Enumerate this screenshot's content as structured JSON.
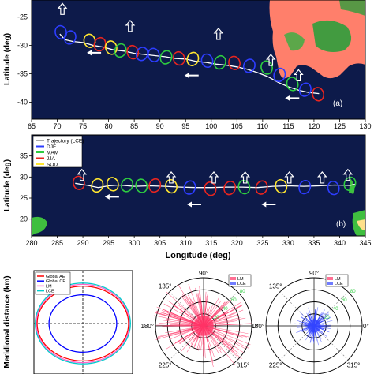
{
  "chart_data": [
    {
      "type": "line",
      "panel_label": "(a)",
      "xlabel": "",
      "ylabel": "Latitude (deg)",
      "xlim": [
        65,
        130
      ],
      "ylim": [
        -43,
        -22
      ],
      "xticks": [
        65,
        70,
        75,
        80,
        85,
        90,
        95,
        100,
        105,
        110,
        115,
        120,
        125,
        130
      ],
      "yticks": [
        -25,
        -30,
        -35,
        -40
      ],
      "xtick_labels": [
        "65",
        "70",
        "75",
        "80",
        "85",
        "90",
        "95",
        "100",
        "105",
        "110",
        "115",
        "120",
        "125",
        "130"
      ],
      "ytick_labels": [
        "-25",
        "-30",
        "-35",
        "-40"
      ],
      "background": "#0d1a4a",
      "land_color": "#ff7f6b",
      "trajectory_color": "#ffffff",
      "trajectory": {
        "x": [
          70.5,
          71.5,
          73,
          75,
          77,
          79,
          81,
          83,
          85,
          87,
          89,
          91,
          93,
          95,
          97,
          99,
          101,
          103,
          105,
          107,
          109,
          111,
          113,
          115,
          117,
          119,
          121
        ],
        "y": [
          -28,
          -29,
          -29.3,
          -29.5,
          -30,
          -30.3,
          -30.8,
          -31,
          -31.4,
          -31.6,
          -31.8,
          -32,
          -32.3,
          -32.4,
          -32.8,
          -33,
          -33.3,
          -33.5,
          -33.8,
          -34.2,
          -34.8,
          -35.5,
          -36.5,
          -37.3,
          -37.9,
          -38.3,
          -38.5
        ]
      },
      "ellipses": [
        {
          "x": 70.7,
          "y": -27.7,
          "season": "DJF"
        },
        {
          "x": 72.5,
          "y": -28.6,
          "season": "DJF"
        },
        {
          "x": 76.3,
          "y": -29.2,
          "season": "SOD"
        },
        {
          "x": 78.3,
          "y": -29.8,
          "season": "JJA"
        },
        {
          "x": 80.5,
          "y": -30.4,
          "season": "SOD"
        },
        {
          "x": 82.3,
          "y": -30.9,
          "season": "MAM"
        },
        {
          "x": 84.7,
          "y": -31.2,
          "season": "JJA"
        },
        {
          "x": 86.5,
          "y": -31.5,
          "season": "DJF"
        },
        {
          "x": 88.8,
          "y": -31.7,
          "season": "DJF"
        },
        {
          "x": 91.2,
          "y": -32.1,
          "season": "MAM"
        },
        {
          "x": 93.7,
          "y": -32.3,
          "season": "JJA"
        },
        {
          "x": 96.4,
          "y": -32.4,
          "season": "SOD"
        },
        {
          "x": 99.2,
          "y": -32.7,
          "season": "DJF"
        },
        {
          "x": 101.7,
          "y": -33.0,
          "season": "MAM"
        },
        {
          "x": 104.5,
          "y": -33.1,
          "season": "JJA"
        },
        {
          "x": 107.4,
          "y": -33.6,
          "season": "DJF"
        },
        {
          "x": 110.8,
          "y": -33.9,
          "season": "MAM"
        },
        {
          "x": 113.3,
          "y": -35.2,
          "season": "DJF"
        },
        {
          "x": 115.8,
          "y": -36.8,
          "season": "MAM"
        },
        {
          "x": 118.3,
          "y": -37.8,
          "season": "DJF"
        },
        {
          "x": 120.8,
          "y": -38.6,
          "season": "JJA"
        }
      ],
      "up_arrows": [
        {
          "x": 71,
          "y": -22.6
        },
        {
          "x": 84.2,
          "y": -25.6
        },
        {
          "x": 101.4,
          "y": -27.0
        },
        {
          "x": 111.6,
          "y": -31.6
        },
        {
          "x": 117.0,
          "y": -34.3
        }
      ],
      "left_arrows": [
        {
          "x": 77.0,
          "y": -31.3
        },
        {
          "x": 96.0,
          "y": -35.3
        },
        {
          "x": 115.6,
          "y": -39.3
        }
      ]
    },
    {
      "type": "line",
      "panel_label": "(b)",
      "xlabel": "Longitude (deg)",
      "ylabel": "Latitude (deg)",
      "xlim": [
        280,
        345
      ],
      "ylim": [
        16,
        40
      ],
      "xticks": [
        280,
        285,
        290,
        295,
        300,
        305,
        310,
        315,
        320,
        325,
        330,
        335,
        340,
        345
      ],
      "yticks": [
        20,
        25,
        30,
        35
      ],
      "xtick_labels": [
        "280",
        "285",
        "290",
        "295",
        "300",
        "305",
        "310",
        "315",
        "320",
        "325",
        "330",
        "335",
        "340",
        "345"
      ],
      "ytick_labels": [
        "20",
        "25",
        "30",
        "35"
      ],
      "background": "#0d1a4a",
      "land_color": "#3fbf3f",
      "trajectory_color": "#ffffff",
      "legend": [
        {
          "label": "Trajectory (LCE)",
          "color": "#ffffff"
        },
        {
          "label": "DJF",
          "color": "#2d3dff"
        },
        {
          "label": "MAM",
          "color": "#2ecc40"
        },
        {
          "label": "JJA",
          "color": "#e8251f"
        },
        {
          "label": "SOD",
          "color": "#ffe630"
        }
      ],
      "trajectory": {
        "x": [
          288.5,
          291,
          293,
          295,
          297,
          300,
          303,
          306,
          309,
          312,
          315,
          318,
          321,
          324,
          327,
          330,
          333,
          336,
          339,
          342,
          343
        ],
        "y": [
          28.5,
          28.0,
          27.5,
          27.9,
          28.1,
          27.8,
          27.9,
          27.8,
          27.6,
          27.5,
          27.5,
          27.6,
          27.6,
          27.5,
          27.8,
          27.9,
          27.8,
          27.9,
          28.1,
          28.0,
          28.3
        ]
      },
      "ellipses": [
        {
          "x": 289.2,
          "y": 28.6,
          "season": "JJA"
        },
        {
          "x": 292.8,
          "y": 28.0,
          "season": "SOD"
        },
        {
          "x": 295.8,
          "y": 28.3,
          "season": "SOD"
        },
        {
          "x": 298.6,
          "y": 28.1,
          "season": "MAM"
        },
        {
          "x": 301.4,
          "y": 27.9,
          "season": "MAM"
        },
        {
          "x": 304.0,
          "y": 28.0,
          "season": "JJA"
        },
        {
          "x": 307.2,
          "y": 27.8,
          "season": "SOD"
        },
        {
          "x": 310.8,
          "y": 27.5,
          "season": "DJF"
        },
        {
          "x": 314.8,
          "y": 27.2,
          "season": "JJA"
        },
        {
          "x": 318.6,
          "y": 27.4,
          "season": "JJA"
        },
        {
          "x": 321.4,
          "y": 27.6,
          "season": "MAM"
        },
        {
          "x": 324.8,
          "y": 27.5,
          "season": "JJA"
        },
        {
          "x": 328.6,
          "y": 27.8,
          "season": "SOD"
        },
        {
          "x": 333.2,
          "y": 27.6,
          "season": "DJF"
        },
        {
          "x": 338.8,
          "y": 27.4,
          "season": "DJF"
        },
        {
          "x": 342.0,
          "y": 28.4,
          "season": "MAM"
        }
      ],
      "up_arrows": [
        {
          "x": 289.8,
          "y": 31.8
        },
        {
          "x": 307.2,
          "y": 31.2
        },
        {
          "x": 315.5,
          "y": 31.2
        },
        {
          "x": 321.6,
          "y": 31.2
        },
        {
          "x": 330.2,
          "y": 31.2
        },
        {
          "x": 336.6,
          "y": 31.2
        },
        {
          "x": 341.6,
          "y": 31.8
        }
      ],
      "left_arrows": [
        {
          "x": 295.5,
          "y": 25.3
        },
        {
          "x": 311.5,
          "y": 23.5
        },
        {
          "x": 326.0,
          "y": 23.5
        }
      ]
    },
    {
      "type": "line",
      "panel": "ellipse-comparison",
      "xlabel": "",
      "ylabel": "Meridional distance (km)",
      "legend": [
        {
          "label": "Global AE",
          "color": "#ff0000"
        },
        {
          "label": "Global CE",
          "color": "#0000ff"
        },
        {
          "label": "LM",
          "color": "#ff66cc"
        },
        {
          "label": "LCE",
          "color": "#00cccc"
        }
      ],
      "series": [
        {
          "name": "Global AE",
          "rx": 1.0,
          "ry": 0.86,
          "color": "#ff0000"
        },
        {
          "name": "Global CE",
          "rx": 0.74,
          "ry": 0.66,
          "color": "#0000ff"
        },
        {
          "name": "LM",
          "rx": 1.02,
          "ry": 0.9,
          "color": "#ff66cc"
        },
        {
          "name": "LCE",
          "rx": 1.04,
          "ry": 0.93,
          "color": "#00cccc"
        }
      ]
    },
    {
      "type": "scatter",
      "panel": "polar-lm",
      "angle_labels": [
        "90°",
        "135°",
        "180°",
        "225°",
        "315°",
        "0°"
      ],
      "radial_labels": [
        "20",
        "40",
        "60",
        "80"
      ],
      "legend": [
        {
          "label": "LM",
          "color": "#ff3366"
        },
        {
          "label": "LCE",
          "color": "#3344ff"
        }
      ],
      "color": "#ff3366"
    },
    {
      "type": "scatter",
      "panel": "polar-lce",
      "angle_labels": [
        "90°",
        "135°",
        "180°",
        "225°",
        "315°",
        "0°"
      ],
      "radial_labels": [
        "20",
        "40",
        "60",
        "80"
      ],
      "legend": [
        {
          "label": "LM",
          "color": "#ff3366"
        },
        {
          "label": "LCE",
          "color": "#3344ff"
        }
      ],
      "color": "#3344ff"
    }
  ],
  "season_colors": {
    "DJF": "#2d3dff",
    "MAM": "#2ecc40",
    "JJA": "#e8251f",
    "SOD": "#ffe630"
  }
}
